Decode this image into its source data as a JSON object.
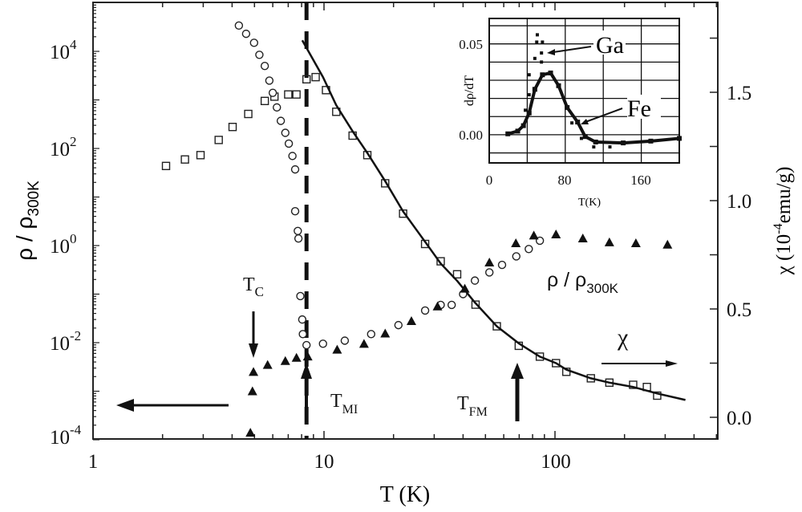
{
  "chart_data": {
    "type": "scatter",
    "xlabel": "T (K)",
    "xscale": "log",
    "xlim": [
      1,
      500
    ],
    "xticks": [
      "1",
      "10",
      "100"
    ],
    "ylabel_left": {
      "main": "ρ / ρ",
      "sub": "300K"
    },
    "yscale_left": "log",
    "ylim_left": [
      0.0001,
      100000.0
    ],
    "yticks_left": [
      {
        "base": "10",
        "exp": "4"
      },
      {
        "base": "10",
        "exp": "2"
      },
      {
        "base": "10",
        "exp": "0"
      },
      {
        "base": "10",
        "exp": "-2"
      },
      {
        "base": "10",
        "exp": "-4"
      }
    ],
    "ylabel_right": {
      "pre": "χ (10",
      "sup": "-4",
      "post": "emu/g)"
    },
    "ylim_right": [
      -0.1,
      1.91
    ],
    "yticks_right": [
      "0.0",
      "0.5",
      "1.0",
      "1.5"
    ],
    "series": [
      {
        "name": "chi",
        "marker": "open-square",
        "axis": "right",
        "x": [
          2.07,
          2.5,
          2.92,
          3.5,
          4.02,
          4.7,
          5.54,
          6.1,
          7.0,
          7.6,
          8.4,
          9.2,
          10.2,
          11.3,
          13.3,
          15.4,
          18.4,
          22,
          27.4,
          32,
          37.7,
          45.3,
          56,
          69.7,
          86,
          101,
          112,
          143,
          172,
          218,
          250,
          277
        ],
        "y": [
          1.16,
          1.19,
          1.21,
          1.28,
          1.34,
          1.4,
          1.46,
          1.48,
          1.49,
          1.49,
          1.56,
          1.57,
          1.51,
          1.41,
          1.3,
          1.21,
          1.08,
          0.94,
          0.8,
          0.72,
          0.66,
          0.52,
          0.42,
          0.33,
          0.28,
          0.25,
          0.21,
          0.18,
          0.16,
          0.15,
          0.14,
          0.1
        ]
      },
      {
        "name": "chi-fit",
        "marker": "line",
        "axis": "right",
        "x": [
          8.05,
          9.9,
          11.3,
          13.3,
          15.4,
          18.4,
          22,
          27.4,
          32,
          37.7,
          45,
          56,
          70,
          86,
          101,
          112,
          143,
          172,
          218,
          277,
          367
        ],
        "y": [
          1.74,
          1.57,
          1.44,
          1.32,
          1.22,
          1.09,
          0.95,
          0.81,
          0.71,
          0.63,
          0.53,
          0.42,
          0.34,
          0.28,
          0.25,
          0.22,
          0.18,
          0.16,
          0.14,
          0.11,
          0.08
        ]
      },
      {
        "name": "rho-circles",
        "marker": "open-circle",
        "axis": "left",
        "x": [
          4.28,
          4.6,
          4.98,
          5.25,
          5.54,
          5.8,
          6.0,
          6.25,
          6.5,
          6.8,
          7.04,
          7.3,
          7.5,
          7.5,
          7.7,
          7.75,
          7.9,
          8.05,
          8.1,
          8.4,
          9.9,
          12.3,
          16,
          21,
          27.4,
          32,
          35.7,
          40,
          45,
          52,
          59,
          68,
          77,
          86
        ],
        "y": [
          34000.0,
          23000.0,
          15000.0,
          8500.0,
          5000.0,
          2500.0,
          1400.0,
          700,
          370,
          210,
          126,
          70,
          37,
          5.1,
          2.0,
          1.4,
          0.091,
          0.03,
          0.015,
          0.0089,
          0.0095,
          0.011,
          0.015,
          0.023,
          0.046,
          0.06,
          0.06,
          0.1,
          0.19,
          0.28,
          0.4,
          0.6,
          0.85,
          1.26
        ]
      },
      {
        "name": "rho-triangles",
        "marker": "filled-triangle",
        "axis": "left",
        "x": [
          4.8,
          4.9,
          4.95,
          5.7,
          6.8,
          7.6,
          8.5,
          11.4,
          14.9,
          18.4,
          23.9,
          31,
          40.7,
          52,
          67.7,
          81,
          101,
          132,
          172,
          224,
          307
        ],
        "y": [
          0.00014,
          0.001,
          0.0025,
          0.0035,
          0.0042,
          0.0049,
          0.0052,
          0.0072,
          0.0095,
          0.0155,
          0.028,
          0.056,
          0.13,
          0.45,
          1.12,
          1.62,
          1.7,
          1.41,
          1.17,
          1.12,
          1.05
        ]
      }
    ],
    "markers": {
      "T_MI_dashed_line": 8.4
    },
    "annotations": {
      "tc": {
        "main": "T",
        "sub": "C"
      },
      "tmi": {
        "main": "T",
        "sub": "MI"
      },
      "tfm": {
        "main": "T",
        "sub": "FM"
      },
      "rho_label": {
        "main": "ρ / ρ",
        "sub": "300K"
      },
      "chi_label": "χ"
    },
    "inset": {
      "type": "scatter",
      "xlabel": "T(K)",
      "ylabel": "dρ/dT",
      "xlim": [
        0,
        200
      ],
      "ylim": [
        -0.0155,
        0.064
      ],
      "xticks": [
        "0",
        "80",
        "160"
      ],
      "yticks": [
        "0.00",
        "0.05"
      ],
      "grid": true,
      "labels": {
        "ga": "Ga",
        "fe": "Fe"
      },
      "series": [
        {
          "name": "Fe",
          "marker": "filled-square-line",
          "x": [
            19.6,
            30,
            36,
            42,
            48,
            56,
            64.6,
            73,
            82,
            93,
            101,
            112,
            141,
            170,
            200
          ],
          "y": [
            0.0005,
            0.002,
            0.005,
            0.012,
            0.025,
            0.033,
            0.034,
            0.027,
            0.015,
            0.007,
            -0.001,
            -0.004,
            -0.0045,
            -0.0035,
            -0.002
          ]
        },
        {
          "name": "Ga",
          "marker": "filled-dot",
          "x": [
            50.6,
            50,
            56,
            55,
            48,
            55,
            42,
            42,
            38,
            87,
            97,
            110,
            127
          ],
          "y": [
            0.055,
            0.051,
            0.051,
            0.045,
            0.042,
            0.04,
            0.033,
            0.022,
            0.0135,
            0.0065,
            -0.002,
            -0.0067,
            -0.0067
          ]
        }
      ]
    }
  }
}
